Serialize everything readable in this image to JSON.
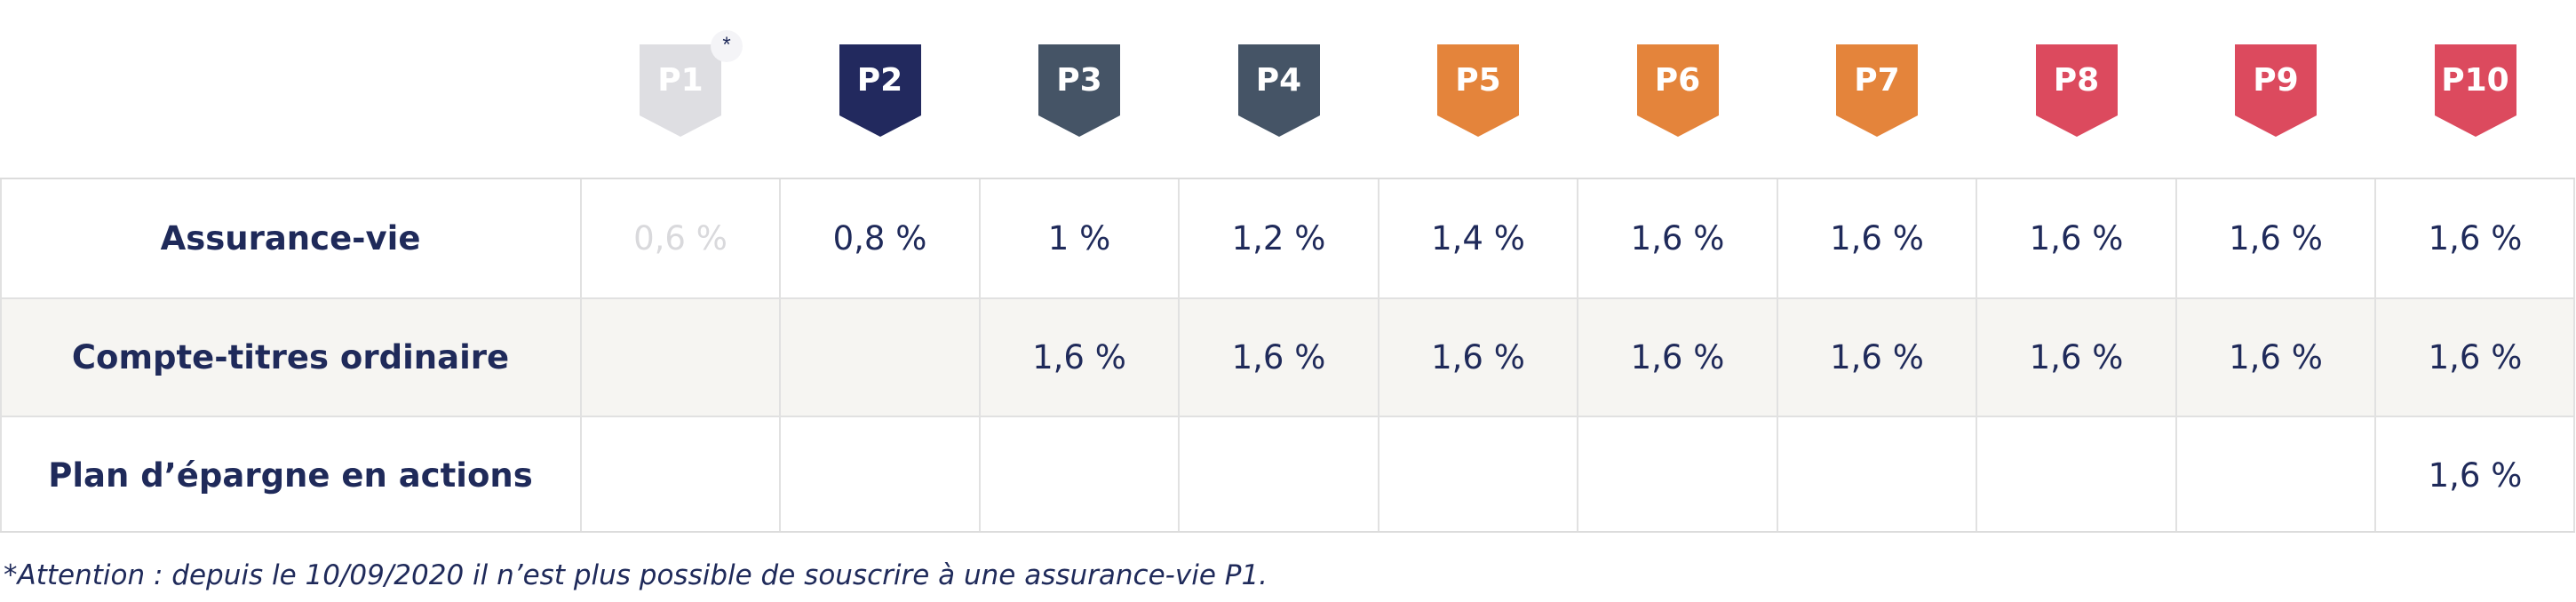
{
  "profiles": [
    {
      "label": "P1",
      "color": "#dedee2",
      "note_marker": "*"
    },
    {
      "label": "P2",
      "color": "#22295e"
    },
    {
      "label": "P3",
      "color": "#455466"
    },
    {
      "label": "P4",
      "color": "#455466"
    },
    {
      "label": "P5",
      "color": "#e4843b"
    },
    {
      "label": "P6",
      "color": "#e4843b"
    },
    {
      "label": "P7",
      "color": "#e4843b"
    },
    {
      "label": "P8",
      "color": "#dc4a5e"
    },
    {
      "label": "P9",
      "color": "#dc4a5e"
    },
    {
      "label": "P10",
      "color": "#dc4a5e"
    }
  ],
  "rows": [
    {
      "label": "Assurance-vie",
      "values": [
        "0,6 %",
        "0,8 %",
        "1 %",
        "1,2 %",
        "1,4 %",
        "1,6 %",
        "1,6 %",
        "1,6 %",
        "1,6 %",
        "1,6 %"
      ]
    },
    {
      "label": "Compte-titres ordinaire",
      "values": [
        "",
        "",
        "1,6 %",
        "1,6 %",
        "1,6 %",
        "1,6 %",
        "1,6 %",
        "1,6 %",
        "1,6 %",
        "1,6 %"
      ]
    },
    {
      "label": "Plan d’épargne en actions",
      "values": [
        "",
        "",
        "",
        "",
        "",
        "",
        "",
        "",
        "",
        "1,6 %"
      ]
    }
  ],
  "footnote": "*Attention : depuis le 10/09/2020 il n’est plus possible de souscrire à une assurance-vie P1."
}
